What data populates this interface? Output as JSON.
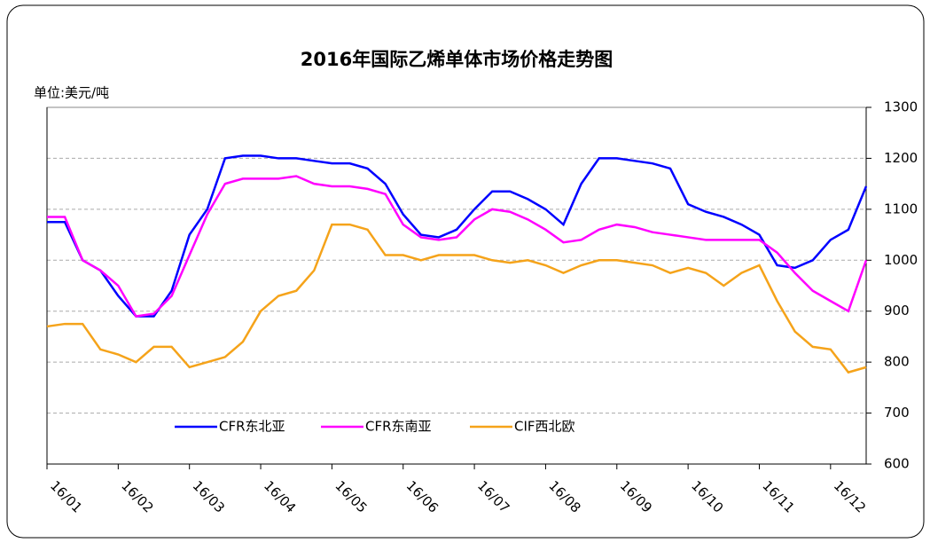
{
  "chart_data": {
    "type": "line",
    "title": "2016年国际乙烯单体市场价格走势图",
    "y_unit_label": "单位:美元/吨",
    "categories": [
      "16/01",
      null,
      null,
      null,
      "16/02",
      null,
      null,
      null,
      "16/03",
      null,
      null,
      null,
      "16/04",
      null,
      null,
      null,
      "16/05",
      null,
      null,
      null,
      "16/06",
      null,
      null,
      null,
      "16/07",
      null,
      null,
      null,
      "16/08",
      null,
      null,
      null,
      "16/09",
      null,
      null,
      null,
      "16/10",
      null,
      null,
      null,
      "16/11",
      null,
      null,
      null,
      "16/12",
      null,
      null
    ],
    "series": [
      {
        "name": "CFR东北亚",
        "color": "#0000ff",
        "values": [
          1075,
          1075,
          1000,
          980,
          930,
          890,
          890,
          940,
          1050,
          1100,
          1200,
          1205,
          1205,
          1200,
          1200,
          1195,
          1190,
          1190,
          1180,
          1150,
          1090,
          1050,
          1045,
          1060,
          1100,
          1135,
          1135,
          1120,
          1100,
          1070,
          1150,
          1200,
          1200,
          1195,
          1190,
          1180,
          1110,
          1095,
          1085,
          1070,
          1050,
          990,
          985,
          1000,
          1040,
          1060,
          1145
        ]
      },
      {
        "name": "CFR东南亚",
        "color": "#ff00ff",
        "values": [
          1085,
          1085,
          1000,
          980,
          950,
          890,
          895,
          930,
          1010,
          1090,
          1150,
          1160,
          1160,
          1160,
          1165,
          1150,
          1145,
          1145,
          1140,
          1130,
          1070,
          1045,
          1040,
          1045,
          1080,
          1100,
          1095,
          1080,
          1060,
          1035,
          1040,
          1060,
          1070,
          1065,
          1055,
          1050,
          1045,
          1040,
          1040,
          1040,
          1040,
          1015,
          975,
          940,
          920,
          900,
          1000
        ]
      },
      {
        "name": "CIF西北欧",
        "color": "#f5a31a",
        "values": [
          870,
          875,
          875,
          825,
          815,
          800,
          830,
          830,
          790,
          800,
          810,
          840,
          900,
          930,
          940,
          980,
          1070,
          1070,
          1060,
          1010,
          1010,
          1000,
          1010,
          1010,
          1010,
          1000,
          995,
          1000,
          990,
          975,
          990,
          1000,
          1000,
          995,
          990,
          975,
          985,
          975,
          950,
          975,
          990,
          920,
          860,
          830,
          825,
          780,
          790
        ]
      }
    ],
    "ylim": [
      600,
      1300
    ],
    "yticks": [
      600,
      700,
      800,
      900,
      1000,
      1100,
      1200,
      1300
    ],
    "grid": true,
    "legend": "lower left"
  }
}
